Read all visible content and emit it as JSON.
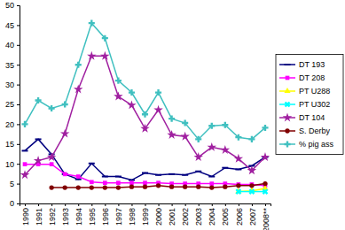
{
  "chart_data": {
    "type": "line",
    "categories": [
      "1990",
      "1991",
      "1992",
      "1993",
      "1994",
      "1995",
      "1996",
      "1997",
      "1998",
      "1999",
      "2000",
      "2001",
      "2002",
      "2003",
      "2004",
      "2005",
      "2006",
      "2007",
      "2008**"
    ],
    "series": [
      {
        "name": "DT 193",
        "color": "#000080",
        "marker": "dash",
        "values": [
          13.3,
          16.2,
          12.4,
          7.4,
          6.1,
          10.1,
          6.8,
          6.8,
          5.9,
          7.7,
          7.2,
          7.4,
          7.2,
          8.1,
          6.8,
          9.0,
          8.6,
          9.5,
          11.7
        ]
      },
      {
        "name": "DT 208",
        "color": "#ff00ff",
        "marker": "square",
        "values": [
          9.9,
          9.9,
          9.9,
          7.4,
          6.8,
          5.4,
          5.2,
          5.2,
          5.2,
          5.2,
          5.2,
          5.0,
          5.0,
          5.0,
          5.0,
          5.0,
          4.8,
          4.8,
          4.5
        ]
      },
      {
        "name": "PT U288",
        "color": "#ffff00",
        "marker": "triangle",
        "values": [
          null,
          null,
          null,
          null,
          null,
          null,
          null,
          null,
          null,
          null,
          null,
          null,
          null,
          null,
          null,
          null,
          3.0,
          3.2,
          3.8
        ]
      },
      {
        "name": "PT U302",
        "color": "#00ffff",
        "marker": "x",
        "values": [
          null,
          null,
          null,
          null,
          null,
          null,
          null,
          null,
          null,
          null,
          null,
          null,
          null,
          null,
          null,
          null,
          3.0,
          3.0,
          3.0
        ]
      },
      {
        "name": "DT 104",
        "color": "#a020a0",
        "marker": "star",
        "values": [
          7.2,
          10.8,
          11.7,
          17.6,
          28.8,
          37.2,
          37.2,
          27.0,
          24.8,
          18.9,
          23.6,
          17.3,
          16.9,
          11.7,
          14.2,
          13.5,
          11.3,
          8.3,
          11.7
        ]
      },
      {
        "name": "S. Derby",
        "color": "#800000",
        "marker": "circle",
        "values": [
          null,
          null,
          4.0,
          4.0,
          4.0,
          4.0,
          4.0,
          4.0,
          4.2,
          4.2,
          4.5,
          4.2,
          4.2,
          4.2,
          4.0,
          4.2,
          4.5,
          4.5,
          5.0
        ]
      },
      {
        "name": "% pig ass",
        "color": "#40c0c0",
        "marker": "plus",
        "values": [
          20.0,
          26.0,
          24.0,
          25.0,
          35.0,
          45.5,
          41.7,
          31.0,
          28.0,
          22.5,
          28.0,
          21.4,
          20.3,
          16.2,
          19.6,
          19.8,
          16.7,
          16.2,
          19.1
        ]
      }
    ],
    "ylim": [
      0,
      50
    ],
    "yticks": [
      0,
      5,
      10,
      15,
      20,
      25,
      30,
      35,
      40,
      45,
      50
    ],
    "grid": false,
    "legend": "right"
  }
}
